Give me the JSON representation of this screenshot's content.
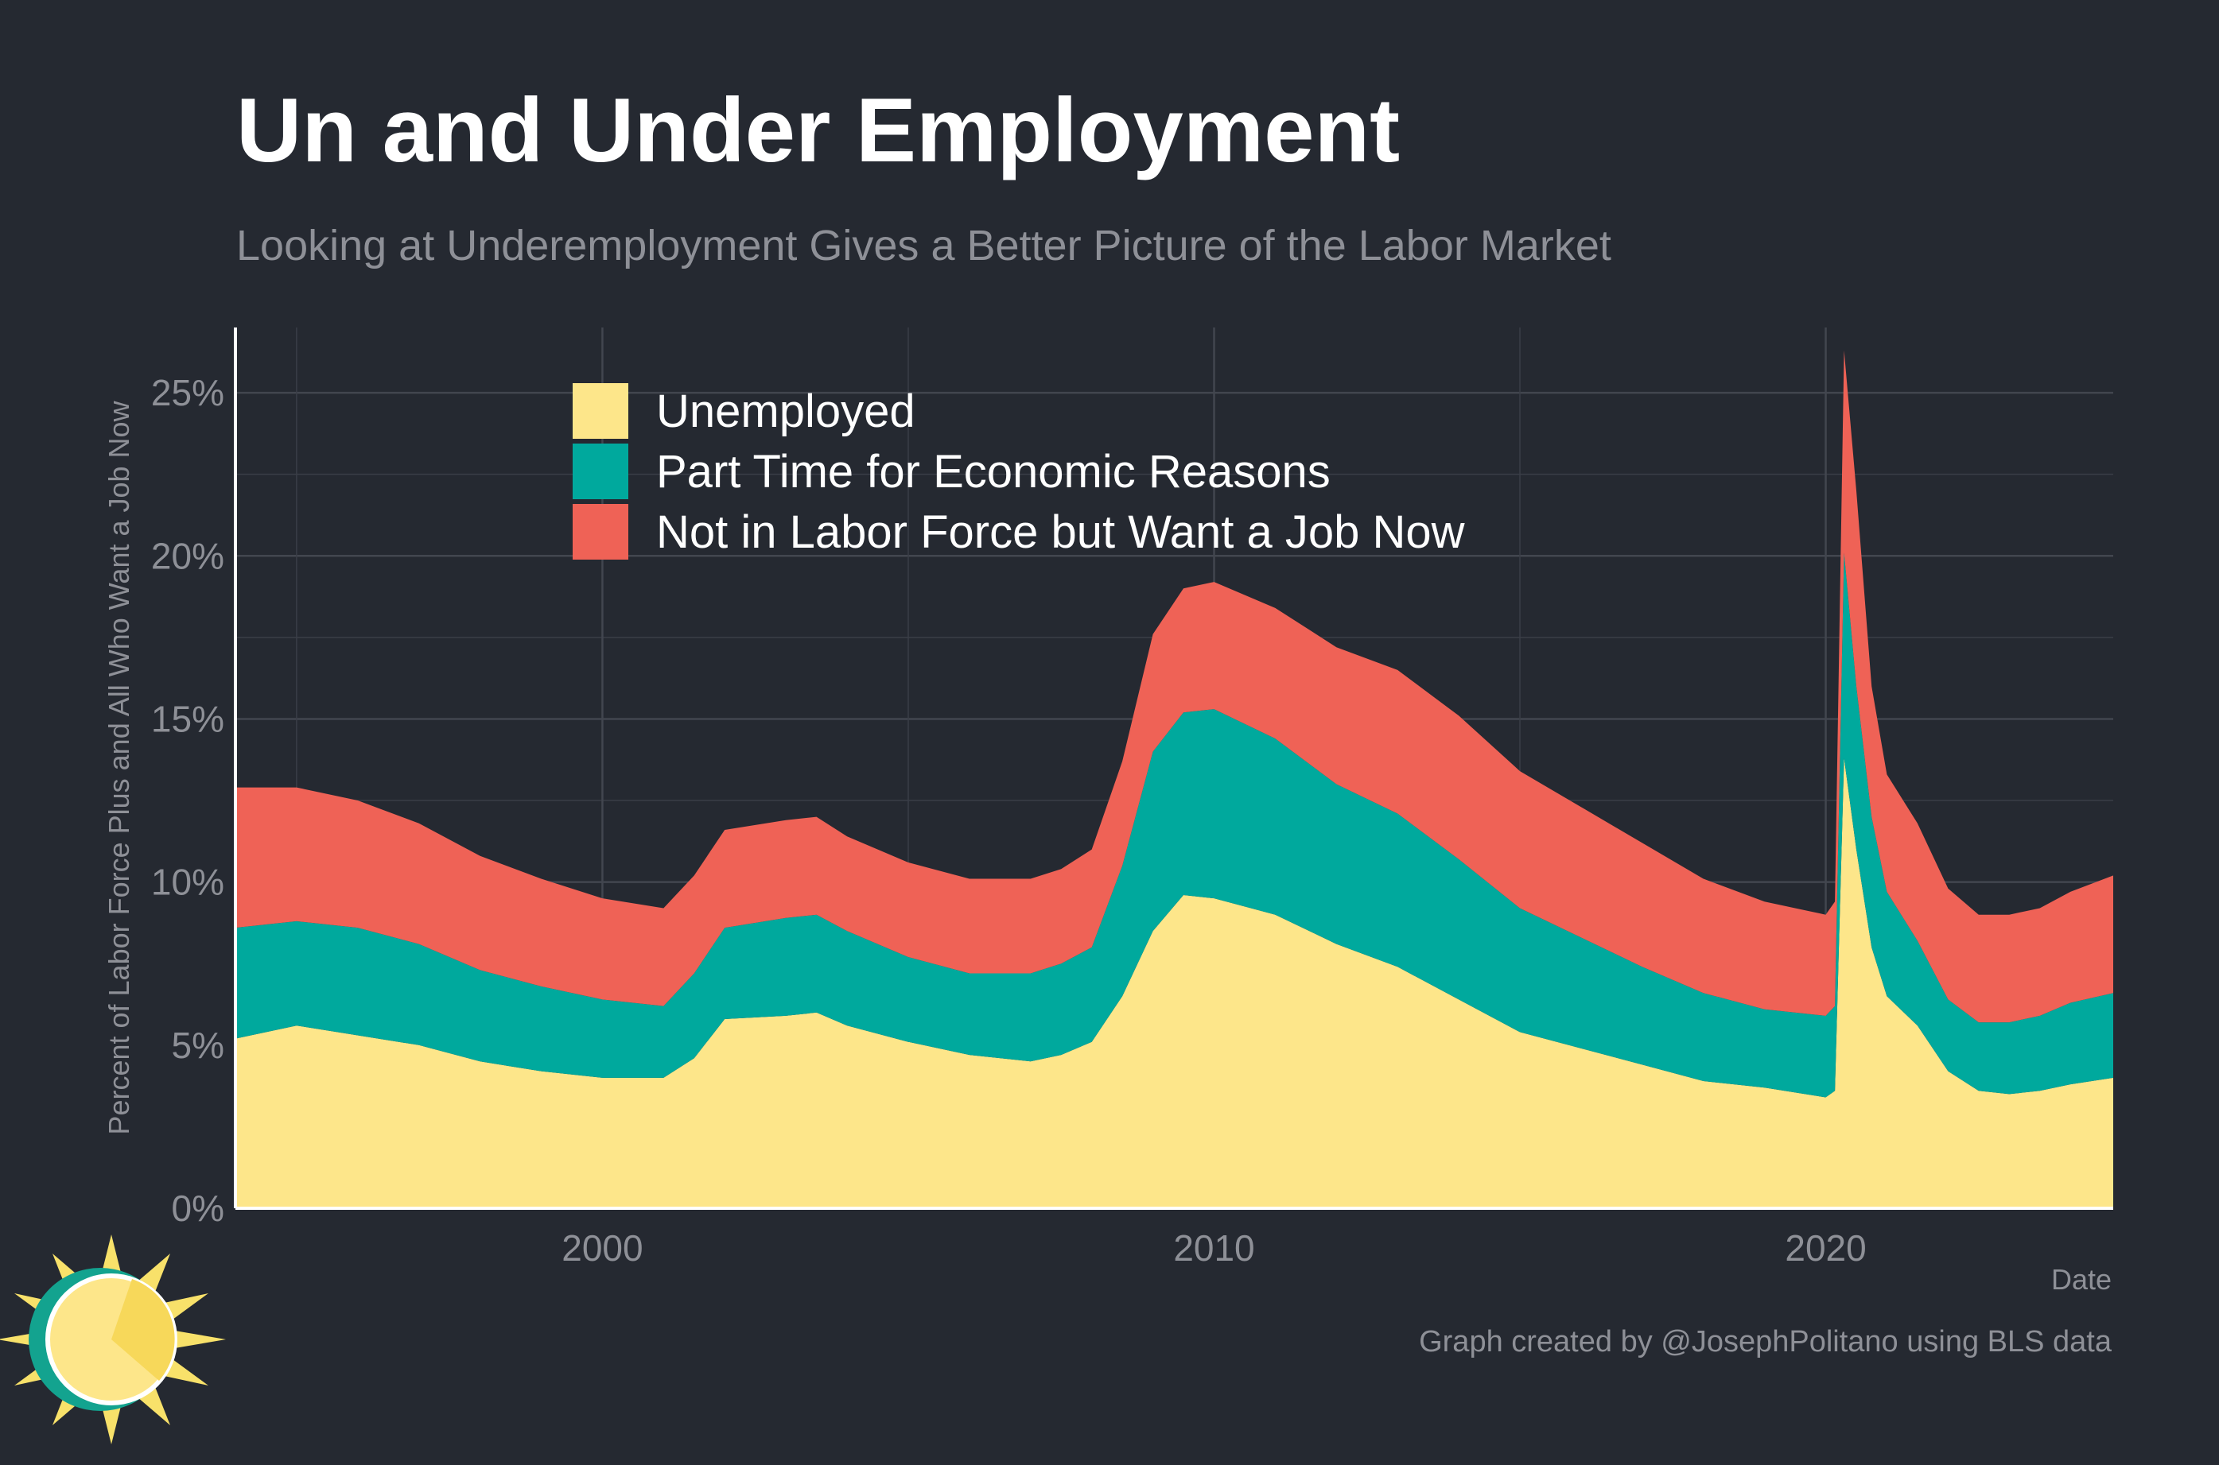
{
  "chart_data": {
    "type": "area",
    "stacked": true,
    "title": "Un and Under Employment",
    "subtitle": "Looking at Underemployment Gives a Better Picture of the Labor Market",
    "xlabel": "Date",
    "ylabel": "Percent of Labor Force Plus and All Who Want a Job Now",
    "caption": "Graph created by @JosephPolitano using BLS data",
    "xlim": [
      1994.0,
      2024.7
    ],
    "ylim": [
      0,
      27
    ],
    "x_ticks": [
      2000,
      2010,
      2020
    ],
    "x_tick_labels": [
      "2000",
      "2010",
      "2020"
    ],
    "y_ticks": [
      0,
      5,
      10,
      15,
      20,
      25
    ],
    "y_tick_labels": [
      "0%",
      "5%",
      "10%",
      "15%",
      "20%",
      "25%"
    ],
    "grid": true,
    "legend_position": "top-left",
    "x": [
      1994.0,
      1995.0,
      1996.0,
      1997.0,
      1998.0,
      1999.0,
      2000.0,
      2001.0,
      2001.5,
      2002.0,
      2003.0,
      2003.5,
      2004.0,
      2005.0,
      2006.0,
      2007.0,
      2007.5,
      2008.0,
      2008.5,
      2009.0,
      2009.5,
      2010.0,
      2011.0,
      2012.0,
      2013.0,
      2014.0,
      2015.0,
      2016.0,
      2017.0,
      2018.0,
      2019.0,
      2020.0,
      2020.15,
      2020.3,
      2020.5,
      2020.75,
      2021.0,
      2021.5,
      2022.0,
      2022.5,
      2023.0,
      2023.5,
      2024.0,
      2024.7
    ],
    "series": [
      {
        "name": "Unemployed",
        "color": "#fde68a",
        "values": [
          5.2,
          5.6,
          5.3,
          5.0,
          4.5,
          4.2,
          4.0,
          4.0,
          4.6,
          5.8,
          5.9,
          6.0,
          5.6,
          5.1,
          4.7,
          4.5,
          4.7,
          5.1,
          6.5,
          8.5,
          9.6,
          9.5,
          9.0,
          8.1,
          7.4,
          6.4,
          5.4,
          4.9,
          4.4,
          3.9,
          3.7,
          3.4,
          3.6,
          13.8,
          11.0,
          8.0,
          6.5,
          5.6,
          4.2,
          3.6,
          3.5,
          3.6,
          3.8,
          4.0
        ]
      },
      {
        "name": "Part Time for Economic Reasons",
        "color": "#00a99d",
        "values": [
          3.4,
          3.2,
          3.3,
          3.1,
          2.8,
          2.6,
          2.4,
          2.2,
          2.6,
          2.8,
          3.0,
          3.0,
          2.9,
          2.6,
          2.5,
          2.7,
          2.8,
          2.9,
          4.0,
          5.5,
          5.6,
          5.8,
          5.4,
          4.9,
          4.7,
          4.3,
          3.8,
          3.4,
          3.0,
          2.7,
          2.4,
          2.5,
          2.6,
          6.3,
          5.0,
          4.0,
          3.2,
          2.6,
          2.2,
          2.1,
          2.2,
          2.3,
          2.5,
          2.6
        ]
      },
      {
        "name": "Not in Labor Force but Want a Job Now",
        "color": "#ef6256",
        "values": [
          4.3,
          4.1,
          3.9,
          3.7,
          3.5,
          3.3,
          3.1,
          3.0,
          3.0,
          3.0,
          3.0,
          3.0,
          2.9,
          2.9,
          2.9,
          2.9,
          2.9,
          3.0,
          3.2,
          3.6,
          3.8,
          3.9,
          4.0,
          4.2,
          4.4,
          4.4,
          4.2,
          4.0,
          3.8,
          3.5,
          3.3,
          3.1,
          3.2,
          6.2,
          6.0,
          4.0,
          3.6,
          3.6,
          3.4,
          3.3,
          3.3,
          3.3,
          3.4,
          3.6
        ]
      }
    ]
  },
  "logo": {
    "icon": "sun-clock-logo"
  }
}
